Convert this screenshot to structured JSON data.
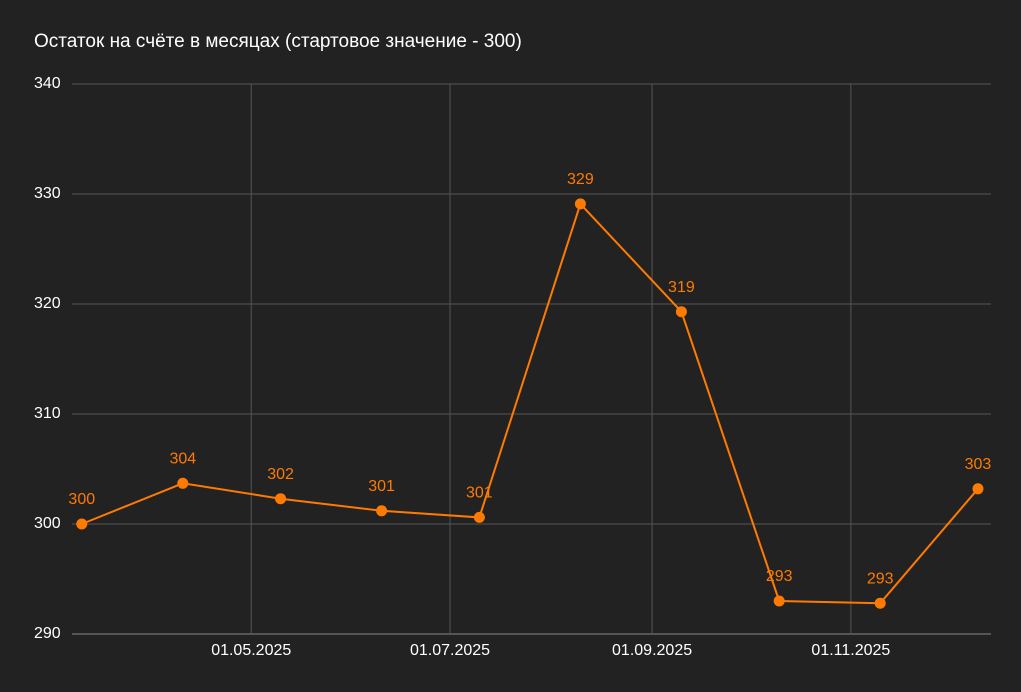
{
  "chart_data": {
    "type": "line",
    "title": "Остаток на счёте в месяцах (стартовое значение - 300)",
    "x": [
      "2025-03-10",
      "2025-04-10",
      "2025-05-10",
      "2025-06-10",
      "2025-07-10",
      "2025-08-10",
      "2025-09-10",
      "2025-10-10",
      "2025-11-10",
      "2025-12-10"
    ],
    "series": [
      {
        "name": "Остаток",
        "color": "#ff7a00",
        "values": [
          300,
          303.7,
          302.3,
          301.2,
          300.6,
          329.1,
          319.3,
          293.0,
          292.8,
          303.2
        ],
        "value_labels": [
          "300",
          "304",
          "302",
          "301",
          "301",
          "329",
          "319",
          "293",
          "293",
          "303"
        ]
      }
    ],
    "xlim": [
      "2025-03-07",
      "2025-12-14"
    ],
    "xticks": [
      {
        "value": "2025-05-01",
        "label": "01.05.2025"
      },
      {
        "value": "2025-07-01",
        "label": "01.07.2025"
      },
      {
        "value": "2025-09-01",
        "label": "01.09.2025"
      },
      {
        "value": "2025-11-01",
        "label": "01.11.2025"
      }
    ],
    "ylim": [
      290,
      340
    ],
    "yticks": [
      290,
      300,
      310,
      320,
      330,
      340
    ],
    "grid": true
  }
}
